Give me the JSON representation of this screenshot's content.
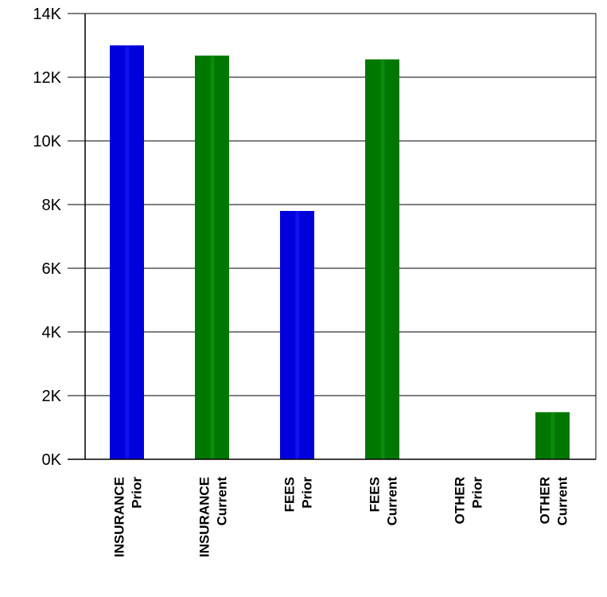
{
  "chart_data": {
    "type": "bar",
    "title": "",
    "xlabel": "",
    "ylabel": "",
    "ylim": [
      0,
      14000
    ],
    "yticks": [
      0,
      2000,
      4000,
      6000,
      8000,
      10000,
      12000,
      14000
    ],
    "ytick_labels": [
      "0K",
      "2K",
      "4K",
      "6K",
      "8K",
      "10K",
      "12K",
      "14K"
    ],
    "grid": true,
    "categories": [
      {
        "line1": "INSURANCE",
        "line2": "Prior"
      },
      {
        "line1": "INSURANCE",
        "line2": "Current"
      },
      {
        "line1": "FEES",
        "line2": "Prior"
      },
      {
        "line1": "FEES",
        "line2": "Current"
      },
      {
        "line1": "OTHER",
        "line2": "Prior"
      },
      {
        "line1": "OTHER",
        "line2": "Current"
      }
    ],
    "values": [
      13000,
      12680,
      7800,
      12560,
      0,
      1480
    ],
    "bar_colors": [
      "#0000dd",
      "#007700",
      "#0000dd",
      "#007700",
      "#0000dd",
      "#007700"
    ],
    "bar_highlight_colors": [
      "#1a1aff",
      "#119911",
      "#1a1aff",
      "#119911",
      "#1a1aff",
      "#119911"
    ]
  }
}
